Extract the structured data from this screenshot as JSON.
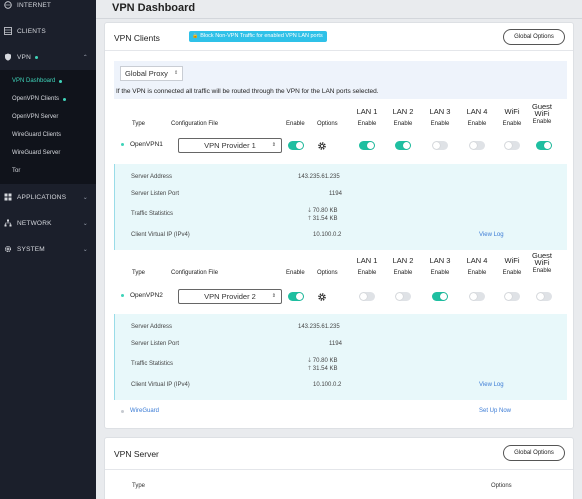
{
  "sidebar": {
    "top_items": [
      {
        "label": "INTERNET"
      },
      {
        "label": "CLIENTS"
      },
      {
        "label": "VPN"
      }
    ],
    "vpn_sub": [
      {
        "label": "VPN Dashboard"
      },
      {
        "label": "OpenVPN Clients"
      },
      {
        "label": "OpenVPN Server"
      },
      {
        "label": "WireGuard Clients"
      },
      {
        "label": "WireGuard Server"
      },
      {
        "label": "Tor"
      }
    ],
    "bottom_items": [
      {
        "label": "APPLICATIONS"
      },
      {
        "label": "NETWORK"
      },
      {
        "label": "SYSTEM"
      }
    ]
  },
  "page_title": "VPN Dashboard",
  "clients_card": {
    "title": "VPN Clients",
    "badge": "Block Non-VPN Traffic for enabled VPN LAN ports",
    "global_options": "Global Options",
    "proxy_select": "Global Proxy",
    "proxy_note": "If the VPN is connected all traffic will be routed through the VPN for the LAN ports selected.",
    "headers": {
      "type": "Type",
      "config": "Configuration File",
      "enable": "Enable",
      "options": "Options",
      "lan1": [
        "LAN 1",
        "Enable"
      ],
      "lan2": [
        "LAN 2",
        "Enable"
      ],
      "lan3": [
        "LAN 3",
        "Enable"
      ],
      "lan4": [
        "LAN 4",
        "Enable"
      ],
      "wifi": [
        "WiFi",
        "Enable"
      ],
      "guest": [
        "Guest",
        "WiFi",
        "Enable"
      ]
    },
    "vpn1": {
      "type": "OpenVPN",
      "num": "1",
      "config": "VPN Provider 1",
      "toggles": {
        "enable": true,
        "lan1": true,
        "lan2": true,
        "lan3": false,
        "lan4": false,
        "wifi": false,
        "guest": true
      },
      "details": {
        "server_address_label": "Server Address",
        "server_address": "143.235.61.235",
        "port_label": "Server Listen Port",
        "port": "1194",
        "traffic_label": "Traffic Statistics",
        "down": "70.80 KB",
        "up": "31.54 KB",
        "vip_label": "Client Virtual IP (IPv4)",
        "vip": "10.100.0.2",
        "view_log": "View Log"
      }
    },
    "vpn2": {
      "type": "OpenVPN",
      "num": "2",
      "config": "VPN Provider 2",
      "toggles": {
        "enable": true,
        "lan1": false,
        "lan2": false,
        "lan3": true,
        "lan4": false,
        "wifi": false,
        "guest": false
      },
      "details": {
        "server_address_label": "Server Address",
        "server_address": "143.235.61.235",
        "port_label": "Server Listen Port",
        "port": "1194",
        "traffic_label": "Traffic Statistics",
        "down": "70.80 KB",
        "up": "31.54 KB",
        "vip_label": "Client Virtual IP (IPv4)",
        "vip": "10.100.0.2",
        "view_log": "View Log"
      }
    },
    "wireguard": {
      "label": "WireGuard",
      "setup": "Set Up Now"
    }
  },
  "server_card": {
    "title": "VPN Server",
    "global_options": "Global Options",
    "type": "Type",
    "options": "Options"
  },
  "colors": {
    "accent": "#1fbfa1",
    "sidebar": "#1b1f2b",
    "badge": "#2fc1e8",
    "link": "#3a7bd5"
  }
}
